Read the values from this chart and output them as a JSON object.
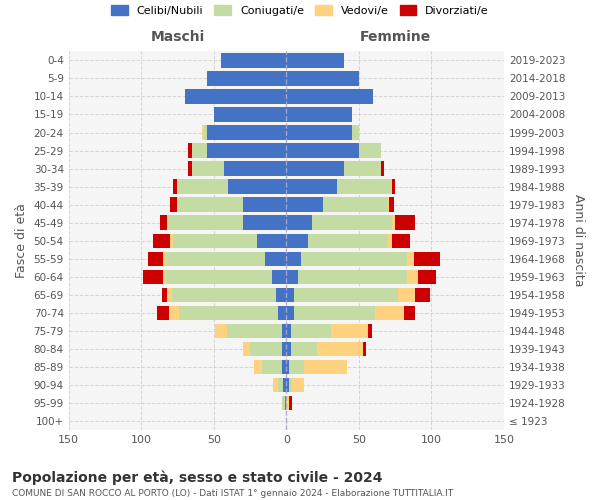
{
  "age_groups": [
    "100+",
    "95-99",
    "90-94",
    "85-89",
    "80-84",
    "75-79",
    "70-74",
    "65-69",
    "60-64",
    "55-59",
    "50-54",
    "45-49",
    "40-44",
    "35-39",
    "30-34",
    "25-29",
    "20-24",
    "15-19",
    "10-14",
    "5-9",
    "0-4"
  ],
  "birth_years": [
    "≤ 1923",
    "1924-1928",
    "1929-1933",
    "1934-1938",
    "1939-1943",
    "1944-1948",
    "1949-1953",
    "1954-1958",
    "1959-1963",
    "1964-1968",
    "1969-1973",
    "1974-1978",
    "1979-1983",
    "1984-1988",
    "1989-1993",
    "1994-1998",
    "1999-2003",
    "2004-2008",
    "2009-2013",
    "2014-2018",
    "2019-2023"
  ],
  "maschi": {
    "celibi": [
      0,
      1,
      2,
      3,
      3,
      3,
      6,
      7,
      10,
      15,
      20,
      30,
      30,
      40,
      43,
      55,
      55,
      50,
      70,
      55,
      45
    ],
    "coniugati": [
      0,
      2,
      4,
      14,
      22,
      38,
      68,
      72,
      73,
      68,
      58,
      52,
      45,
      35,
      22,
      10,
      2,
      0,
      0,
      0,
      0
    ],
    "vedovi": [
      0,
      0,
      3,
      5,
      5,
      8,
      7,
      3,
      2,
      2,
      2,
      0,
      0,
      0,
      0,
      0,
      1,
      0,
      0,
      0,
      0
    ],
    "divorziati": [
      0,
      0,
      0,
      0,
      0,
      0,
      8,
      4,
      14,
      10,
      12,
      5,
      5,
      3,
      3,
      3,
      0,
      0,
      0,
      0,
      0
    ]
  },
  "femmine": {
    "nubili": [
      0,
      0,
      2,
      2,
      3,
      3,
      5,
      5,
      8,
      10,
      15,
      18,
      25,
      35,
      40,
      50,
      45,
      45,
      60,
      50,
      40
    ],
    "coniugate": [
      0,
      0,
      2,
      10,
      18,
      28,
      56,
      72,
      75,
      73,
      55,
      55,
      45,
      38,
      25,
      15,
      5,
      0,
      0,
      0,
      0
    ],
    "vedove": [
      0,
      2,
      8,
      30,
      32,
      25,
      20,
      12,
      8,
      5,
      3,
      2,
      1,
      0,
      0,
      0,
      0,
      0,
      0,
      0,
      0
    ],
    "divorziate": [
      0,
      2,
      0,
      0,
      2,
      3,
      8,
      10,
      12,
      18,
      12,
      14,
      3,
      2,
      2,
      0,
      0,
      0,
      0,
      0,
      0
    ]
  },
  "color_celibi": "#4472c4",
  "color_coniugati": "#c5dba4",
  "color_vedovi": "#ffd280",
  "color_divorziati": "#cc0000",
  "xlim": 150,
  "title": "Popolazione per età, sesso e stato civile - 2024",
  "subtitle": "COMUNE DI SAN ROCCO AL PORTO (LO) - Dati ISTAT 1° gennaio 2024 - Elaborazione TUTTITALIA.IT",
  "xlabel_left": "Maschi",
  "xlabel_right": "Femmine",
  "ylabel_left": "Fasce di età",
  "ylabel_right": "Anni di nascita",
  "legend_labels": [
    "Celibi/Nubili",
    "Coniugati/e",
    "Vedovi/e",
    "Divorziati/e"
  ],
  "bg_color": "#ffffff",
  "grid_color": "#cccccc"
}
